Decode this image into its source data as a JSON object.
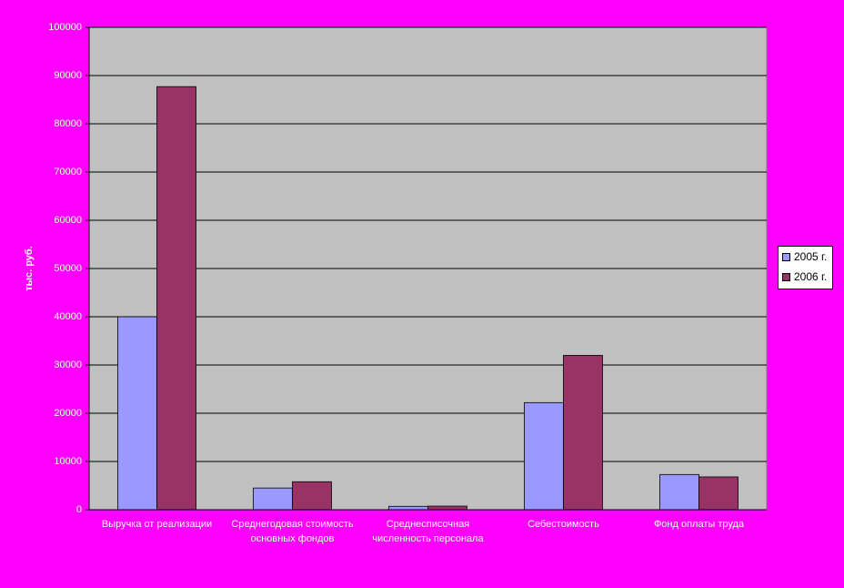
{
  "chart_data": {
    "type": "bar",
    "y_label": "тыс. руб.",
    "categories": [
      "Выручка от реализации",
      "Среднегодовая стоимость основных фондов",
      "Среднесписочная численность персонала",
      "Себестоимость",
      "Фонд оплаты труда"
    ],
    "series": [
      {
        "name": "2005 г.",
        "color": "#9999ff",
        "values": [
          40000,
          4500,
          700,
          22200,
          7300
        ]
      },
      {
        "name": "2006 г.",
        "color": "#993366",
        "values": [
          87700,
          5800,
          750,
          32000,
          6800
        ]
      }
    ],
    "ylim": [
      0,
      100000
    ],
    "yticks": [
      0,
      10000,
      20000,
      30000,
      40000,
      50000,
      60000,
      70000,
      80000,
      90000,
      100000
    ],
    "grid": true
  }
}
